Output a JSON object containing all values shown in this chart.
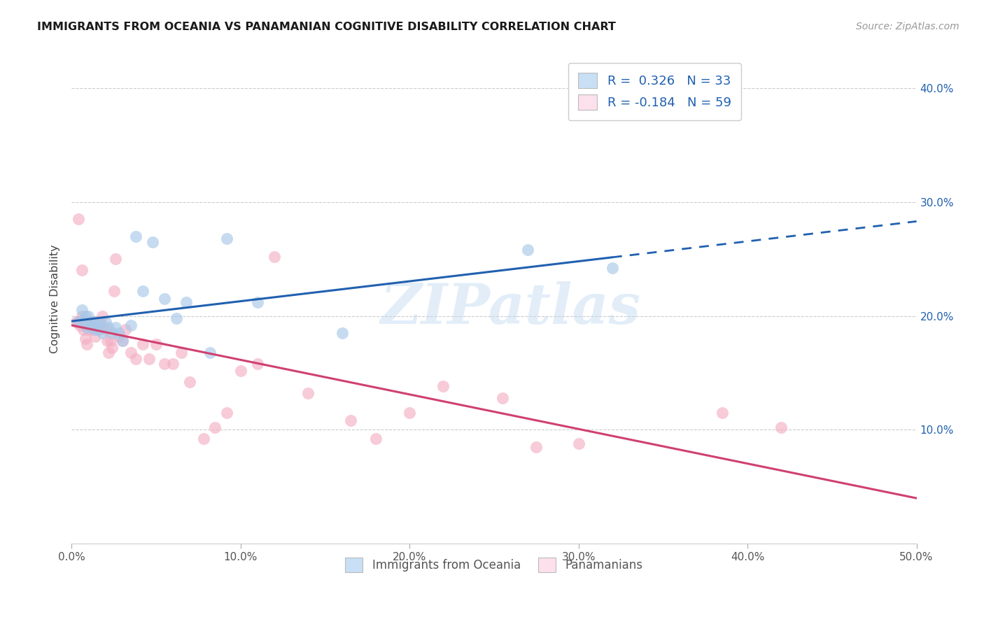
{
  "title": "IMMIGRANTS FROM OCEANIA VS PANAMANIAN COGNITIVE DISABILITY CORRELATION CHART",
  "source": "Source: ZipAtlas.com",
  "ylabel": "Cognitive Disability",
  "xlim": [
    0.0,
    0.5
  ],
  "ylim": [
    0.0,
    0.43
  ],
  "xticks": [
    0.0,
    0.1,
    0.2,
    0.3,
    0.4,
    0.5
  ],
  "yticks": [
    0.1,
    0.2,
    0.3,
    0.4
  ],
  "xticklabels": [
    "0.0%",
    "10.0%",
    "20.0%",
    "30.0%",
    "40.0%",
    "50.0%"
  ],
  "yticklabels": [
    "10.0%",
    "20.0%",
    "30.0%",
    "40.0%"
  ],
  "legend_labels": [
    "Immigrants from Oceania",
    "Panamanians"
  ],
  "R_oceania": 0.326,
  "N_oceania": 33,
  "R_panama": -0.184,
  "N_panama": 59,
  "blue_color": "#a8c8e8",
  "pink_color": "#f4afc4",
  "blue_line_color": "#2060b0",
  "pink_line_color": "#d04070",
  "blue_fill_color": "#c8dff5",
  "pink_fill_color": "#fce0ec",
  "watermark": "ZIPatlas",
  "oceania_x": [
    0.004,
    0.006,
    0.007,
    0.008,
    0.009,
    0.01,
    0.011,
    0.012,
    0.013,
    0.014,
    0.015,
    0.016,
    0.017,
    0.018,
    0.02,
    0.022,
    0.024,
    0.026,
    0.028,
    0.03,
    0.035,
    0.038,
    0.042,
    0.048,
    0.055,
    0.062,
    0.068,
    0.082,
    0.092,
    0.11,
    0.16,
    0.27,
    0.32
  ],
  "oceania_y": [
    0.195,
    0.205,
    0.195,
    0.2,
    0.19,
    0.2,
    0.195,
    0.19,
    0.195,
    0.188,
    0.192,
    0.188,
    0.195,
    0.185,
    0.195,
    0.19,
    0.185,
    0.19,
    0.185,
    0.178,
    0.192,
    0.27,
    0.222,
    0.265,
    0.215,
    0.198,
    0.212,
    0.168,
    0.268,
    0.212,
    0.185,
    0.258,
    0.242
  ],
  "panama_x": [
    0.003,
    0.004,
    0.005,
    0.006,
    0.007,
    0.007,
    0.008,
    0.008,
    0.009,
    0.01,
    0.01,
    0.011,
    0.012,
    0.013,
    0.014,
    0.014,
    0.015,
    0.016,
    0.017,
    0.018,
    0.019,
    0.02,
    0.021,
    0.022,
    0.023,
    0.024,
    0.025,
    0.026,
    0.028,
    0.03,
    0.032,
    0.035,
    0.038,
    0.042,
    0.046,
    0.05,
    0.055,
    0.06,
    0.065,
    0.07,
    0.078,
    0.085,
    0.092,
    0.1,
    0.11,
    0.12,
    0.14,
    0.165,
    0.18,
    0.2,
    0.22,
    0.255,
    0.275,
    0.3,
    0.385,
    0.42,
    0.004,
    0.006,
    0.009
  ],
  "panama_y": [
    0.195,
    0.195,
    0.192,
    0.2,
    0.196,
    0.188,
    0.192,
    0.18,
    0.195,
    0.195,
    0.188,
    0.192,
    0.188,
    0.195,
    0.182,
    0.195,
    0.19,
    0.188,
    0.192,
    0.2,
    0.19,
    0.188,
    0.178,
    0.168,
    0.178,
    0.172,
    0.222,
    0.25,
    0.182,
    0.178,
    0.188,
    0.168,
    0.162,
    0.175,
    0.162,
    0.175,
    0.158,
    0.158,
    0.168,
    0.142,
    0.092,
    0.102,
    0.115,
    0.152,
    0.158,
    0.252,
    0.132,
    0.108,
    0.092,
    0.115,
    0.138,
    0.128,
    0.085,
    0.088,
    0.115,
    0.102,
    0.285,
    0.24,
    0.175
  ]
}
